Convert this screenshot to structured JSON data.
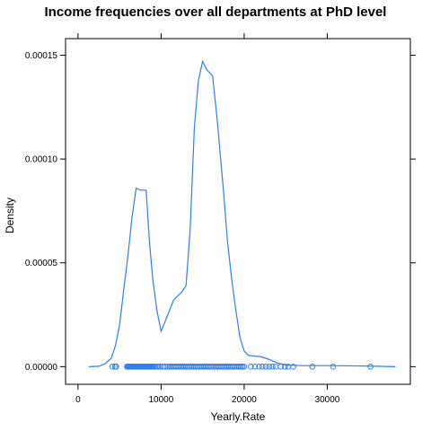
{
  "chart_data": {
    "type": "line",
    "title": "Income frequencies over all departments at PhD level",
    "xlabel": "Yearly.Rate",
    "ylabel": "Density",
    "xlim": [
      -1500,
      40000
    ],
    "ylim": [
      -8.5e-06,
      0.000158
    ],
    "x_ticks": [
      0,
      10000,
      20000,
      30000
    ],
    "x_tick_labels": [
      "0",
      "10000",
      "20000",
      "30000"
    ],
    "y_ticks": [
      0,
      5e-05,
      0.0001,
      0.00015
    ],
    "y_tick_labels": [
      "0.00000",
      "0.00005",
      "0.00010",
      "0.00015"
    ],
    "grid": false,
    "series_color": "#2f7ff0",
    "series": [
      {
        "kind": "density",
        "x": [
          1300,
          2500,
          3300,
          4000,
          4500,
          5000,
          5500,
          6000,
          6500,
          7000,
          7500,
          8200,
          8600,
          9000,
          9500,
          10000,
          10500,
          11000,
          11500,
          12000,
          12500,
          13000,
          13500,
          14000,
          14500,
          15000,
          15500,
          16200,
          16800,
          17500,
          18000,
          18500,
          19000,
          19500,
          20000,
          20500,
          21000,
          22000,
          23000,
          24000,
          25000,
          27000,
          30000,
          33000,
          36000,
          38200
        ],
        "y": [
          0,
          2e-07,
          1.5e-06,
          4e-06,
          1e-05,
          2e-05,
          3.7e-05,
          5.3e-05,
          7.2e-05,
          8.6e-05,
          8.5e-05,
          8.5e-05,
          6e-05,
          4.2e-05,
          2.7e-05,
          1.7e-05,
          2.2e-05,
          2.7e-05,
          3.2e-05,
          3.4e-05,
          3.6e-05,
          3.9e-05,
          6.6e-05,
          0.000115,
          0.000138,
          0.000147,
          0.000143,
          0.00014,
          0.000117,
          8.5e-05,
          6e-05,
          4.2e-05,
          2.7e-05,
          1.4e-05,
          7.5e-06,
          5.5e-06,
          5.2e-06,
          4.8e-06,
          3.5e-06,
          1.8e-06,
          8e-07,
          5e-07,
          5e-07,
          4e-07,
          2e-07,
          0
        ]
      },
      {
        "kind": "rug",
        "y": 0,
        "x": [
          4150,
          4450,
          4600,
          5900,
          6000,
          6100,
          6200,
          6300,
          6400,
          6500,
          6600,
          6700,
          6800,
          6900,
          7000,
          7100,
          7200,
          7300,
          7400,
          7500,
          7600,
          7700,
          7800,
          7900,
          8000,
          8100,
          8200,
          8300,
          8400,
          8500,
          8600,
          8700,
          8800,
          8900,
          9000,
          9150,
          9300,
          9500,
          9700,
          9900,
          10200,
          10500,
          10800,
          11000,
          11200,
          11400,
          11600,
          11800,
          12000,
          12200,
          12400,
          12600,
          12800,
          13000,
          13200,
          13400,
          13600,
          13800,
          14000,
          14200,
          14400,
          14600,
          14800,
          15000,
          15200,
          15400,
          15600,
          15800,
          16000,
          16200,
          16400,
          16600,
          16800,
          17000,
          17200,
          17400,
          17600,
          17800,
          18000,
          18200,
          18400,
          18600,
          18800,
          19000,
          19200,
          19400,
          19600,
          19800,
          20000,
          20800,
          21300,
          21800,
          22200,
          22600,
          23000,
          23400,
          23800,
          24400,
          24900,
          25300,
          25900,
          28200,
          30700,
          35200
        ]
      }
    ]
  }
}
